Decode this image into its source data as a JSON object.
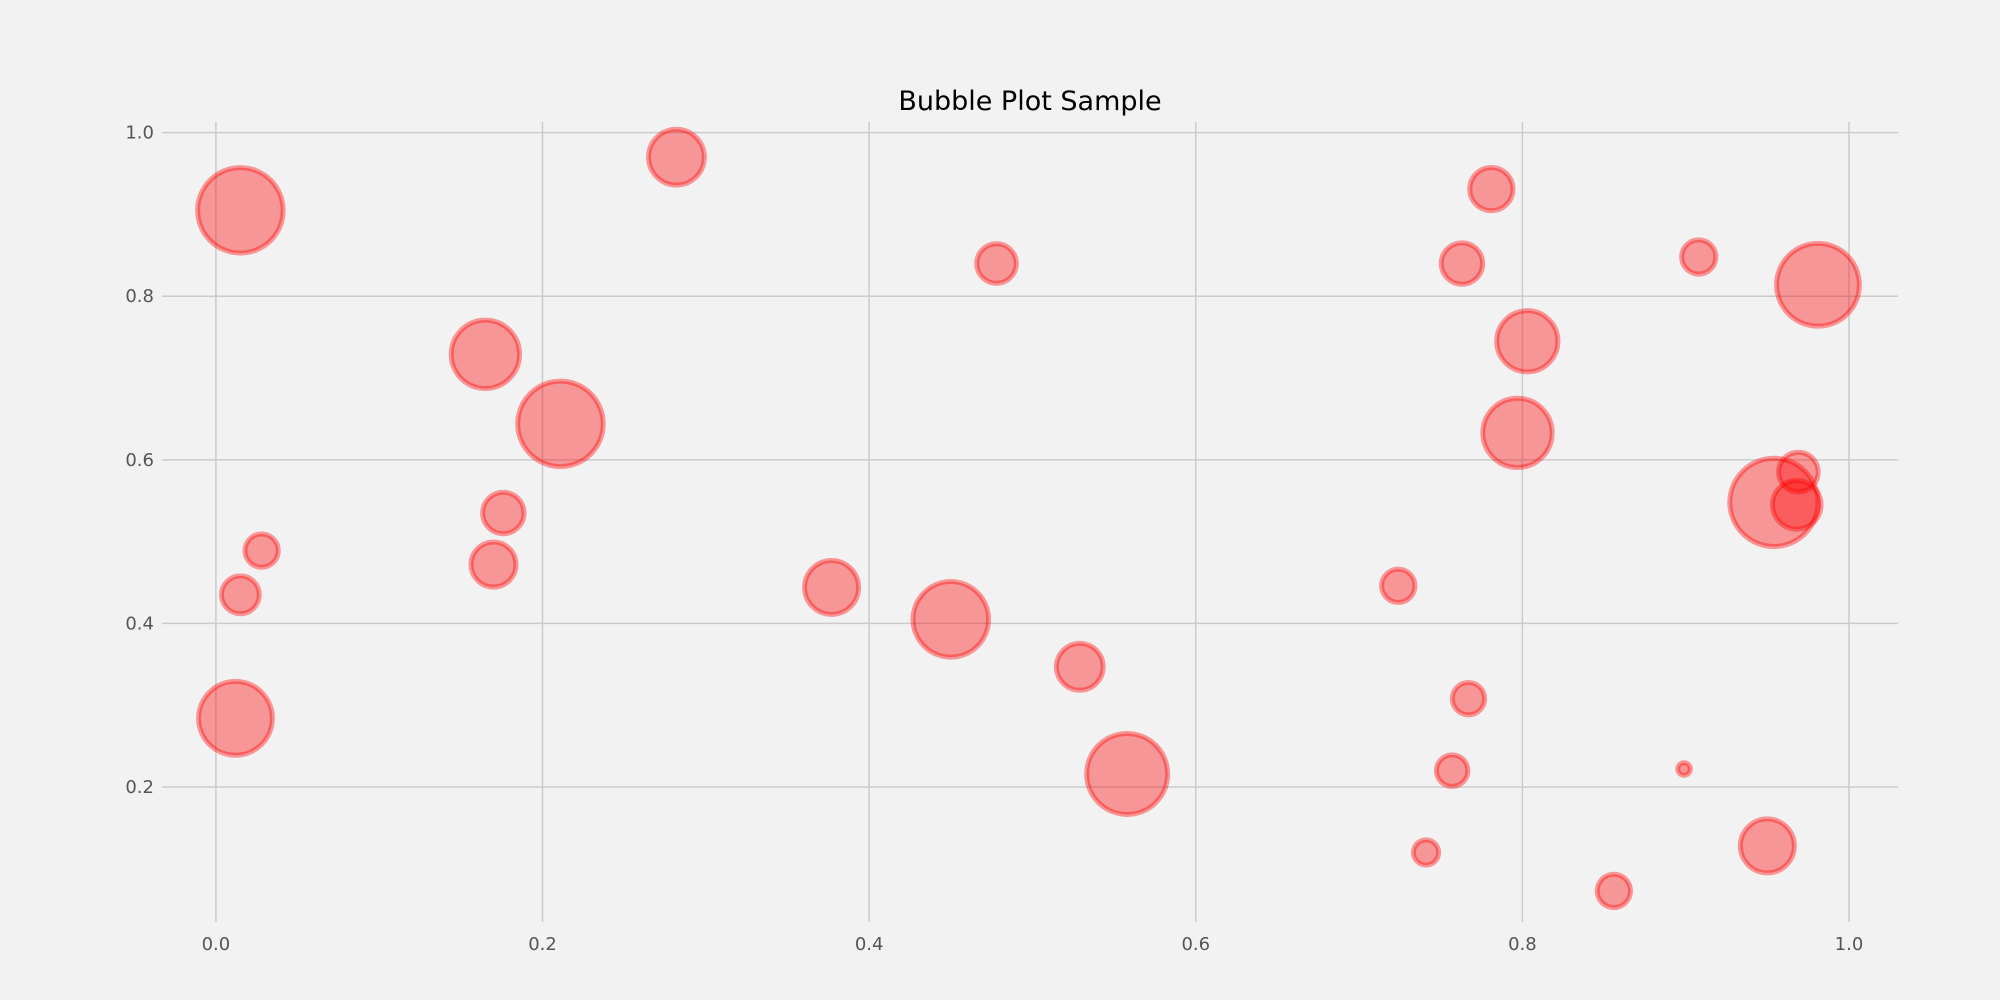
{
  "chart_data": {
    "type": "scatter",
    "title": "Bubble Plot Sample",
    "xlabel": "",
    "ylabel": "",
    "xlim": [
      -0.033,
      1.03
    ],
    "ylim": [
      0.035,
      1.013
    ],
    "x_ticks": [
      0.0,
      0.2,
      0.4,
      0.6,
      0.8,
      1.0
    ],
    "x_tick_labels": [
      "0.0",
      "0.2",
      "0.4",
      "0.6",
      "0.8",
      "1.0"
    ],
    "y_ticks": [
      0.2,
      0.4,
      0.6,
      0.8,
      1.0
    ],
    "y_tick_labels": [
      "0.2",
      "0.4",
      "0.6",
      "0.8",
      "1.0"
    ],
    "grid": true,
    "colors": {
      "bubble": "#ff0000",
      "background": "#f2f2f2",
      "grid": "#cbcbcb"
    },
    "points": [
      {
        "x": 0.015,
        "y": 0.905,
        "size": 0.95
      },
      {
        "x": 0.282,
        "y": 0.97,
        "size": 0.62
      },
      {
        "x": 0.478,
        "y": 0.84,
        "size": 0.44
      },
      {
        "x": 0.165,
        "y": 0.729,
        "size": 0.76
      },
      {
        "x": 0.211,
        "y": 0.644,
        "size": 0.95
      },
      {
        "x": 0.176,
        "y": 0.535,
        "size": 0.46
      },
      {
        "x": 0.17,
        "y": 0.472,
        "size": 0.5
      },
      {
        "x": 0.028,
        "y": 0.489,
        "size": 0.37
      },
      {
        "x": 0.015,
        "y": 0.435,
        "size": 0.42
      },
      {
        "x": 0.012,
        "y": 0.284,
        "size": 0.82
      },
      {
        "x": 0.377,
        "y": 0.444,
        "size": 0.6
      },
      {
        "x": 0.45,
        "y": 0.405,
        "size": 0.84
      },
      {
        "x": 0.529,
        "y": 0.347,
        "size": 0.52
      },
      {
        "x": 0.558,
        "y": 0.216,
        "size": 0.9
      },
      {
        "x": 0.781,
        "y": 0.931,
        "size": 0.48
      },
      {
        "x": 0.763,
        "y": 0.84,
        "size": 0.46
      },
      {
        "x": 0.803,
        "y": 0.745,
        "size": 0.68
      },
      {
        "x": 0.797,
        "y": 0.633,
        "size": 0.77
      },
      {
        "x": 0.908,
        "y": 0.848,
        "size": 0.38
      },
      {
        "x": 0.981,
        "y": 0.814,
        "size": 0.92
      },
      {
        "x": 0.954,
        "y": 0.548,
        "size": 0.98
      },
      {
        "x": 0.969,
        "y": 0.585,
        "size": 0.44
      },
      {
        "x": 0.968,
        "y": 0.545,
        "size": 0.54
      },
      {
        "x": 0.724,
        "y": 0.446,
        "size": 0.37
      },
      {
        "x": 0.767,
        "y": 0.308,
        "size": 0.36
      },
      {
        "x": 0.757,
        "y": 0.22,
        "size": 0.35
      },
      {
        "x": 0.899,
        "y": 0.222,
        "size": 0.14
      },
      {
        "x": 0.741,
        "y": 0.12,
        "size": 0.28
      },
      {
        "x": 0.95,
        "y": 0.128,
        "size": 0.6
      },
      {
        "x": 0.856,
        "y": 0.073,
        "size": 0.37
      }
    ]
  }
}
